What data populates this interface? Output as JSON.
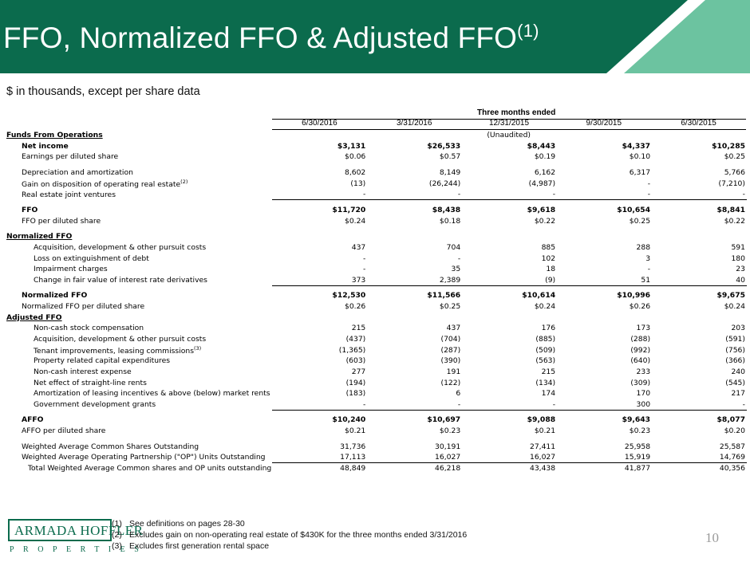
{
  "title": {
    "main": "FFO, Normalized FFO & Adjusted FFO",
    "sup": "(1)"
  },
  "subtitle": "$ in thousands, except per share data",
  "table": {
    "group_header": "Three months ended",
    "columns": [
      "6/30/2016",
      "3/31/2016",
      "12/31/2015",
      "9/30/2015",
      "6/30/2015"
    ],
    "unaudited": "(Unaudited)",
    "sections": {
      "ffo": "Funds From Operations",
      "normalized": "Normalized FFO",
      "adjusted": "Adjusted FFO"
    },
    "rows": [
      {
        "label": "Net income",
        "values": [
          "$3,131",
          "$26,533",
          "$8,443",
          "$4,337",
          "$10,285"
        ]
      },
      {
        "label": "Earnings per diluted share",
        "values": [
          "$0.06",
          "$0.57",
          "$0.19",
          "$0.10",
          "$0.25"
        ]
      },
      {
        "label": "Depreciation and amortization",
        "values": [
          "8,602",
          "8,149",
          "6,162",
          "6,317",
          "5,766"
        ]
      },
      {
        "label": "Gain on disposition of operating real estate",
        "sup": "(2)",
        "values": [
          "(13)",
          "(26,244)",
          "(4,987)",
          "-",
          "(7,210)"
        ]
      },
      {
        "label": "Real estate joint ventures",
        "values": [
          "-",
          "-",
          "-",
          "-",
          "-"
        ]
      },
      {
        "label": "FFO",
        "values": [
          "$11,720",
          "$8,438",
          "$9,618",
          "$10,654",
          "$8,841"
        ]
      },
      {
        "label": "FFO per diluted share",
        "values": [
          "$0.24",
          "$0.18",
          "$0.22",
          "$0.25",
          "$0.22"
        ]
      },
      {
        "label": "Acquisition, development & other pursuit costs",
        "values": [
          "437",
          "704",
          "885",
          "288",
          "591"
        ]
      },
      {
        "label": "Loss on extinguishment of debt",
        "values": [
          "-",
          "-",
          "102",
          "3",
          "180"
        ]
      },
      {
        "label": "Impairment charges",
        "values": [
          "-",
          "35",
          "18",
          "-",
          "23"
        ]
      },
      {
        "label": "Change in fair value of interest rate derivatives",
        "values": [
          "373",
          "2,389",
          "(9)",
          "51",
          "40"
        ]
      },
      {
        "label": "Normalized FFO",
        "values": [
          "$12,530",
          "$11,566",
          "$10,614",
          "$10,996",
          "$9,675"
        ]
      },
      {
        "label": "Normalized FFO per diluted share",
        "values": [
          "$0.26",
          "$0.25",
          "$0.24",
          "$0.26",
          "$0.24"
        ]
      },
      {
        "label": "Non-cash stock compensation",
        "values": [
          "215",
          "437",
          "176",
          "173",
          "203"
        ]
      },
      {
        "label": "Acquisition, development & other pursuit costs",
        "values": [
          "(437)",
          "(704)",
          "(885)",
          "(288)",
          "(591)"
        ]
      },
      {
        "label": "Tenant improvements, leasing commissions",
        "sup": "(3)",
        "values": [
          "(1,365)",
          "(287)",
          "(509)",
          "(992)",
          "(756)"
        ]
      },
      {
        "label": "Property related capital expenditures",
        "values": [
          "(603)",
          "(390)",
          "(563)",
          "(640)",
          "(366)"
        ]
      },
      {
        "label": "Non-cash interest expense",
        "values": [
          "277",
          "191",
          "215",
          "233",
          "240"
        ]
      },
      {
        "label": "Net effect of straight-line rents",
        "values": [
          "(194)",
          "(122)",
          "(134)",
          "(309)",
          "(545)"
        ]
      },
      {
        "label": "Amortization of leasing incentives & above (below) market rents",
        "values": [
          "(183)",
          "6",
          "174",
          "170",
          "217"
        ]
      },
      {
        "label": "Government development grants",
        "values": [
          "-",
          "-",
          "-",
          "300",
          "-"
        ]
      },
      {
        "label": "AFFO",
        "values": [
          "$10,240",
          "$10,697",
          "$9,088",
          "$9,643",
          "$8,077"
        ]
      },
      {
        "label": "AFFO per diluted share",
        "values": [
          "$0.21",
          "$0.23",
          "$0.21",
          "$0.23",
          "$0.20"
        ]
      },
      {
        "label": "Weighted Average Common Shares Outstanding",
        "values": [
          "31,736",
          "30,191",
          "27,411",
          "25,958",
          "25,587"
        ]
      },
      {
        "label": "Weighted Average Operating Partnership (\"OP\") Units Outstanding",
        "values": [
          "17,113",
          "16,027",
          "16,027",
          "15,919",
          "14,769"
        ]
      },
      {
        "label": "Total Weighted Average Common shares and OP units outstanding",
        "values": [
          "48,849",
          "46,218",
          "43,438",
          "41,877",
          "40,356"
        ]
      }
    ]
  },
  "footnotes": [
    {
      "num": "(1)",
      "text": "See definitions on pages 28-30"
    },
    {
      "num": "(2)",
      "text": "Excludes gain on non-operating real estate of $430K for the three months ended 3/31/2016"
    },
    {
      "num": "(3)",
      "text": "Excludes first generation rental space"
    }
  ],
  "logo": {
    "name": "ARMADA HOFFLER",
    "sub": "PROPERTIES"
  },
  "page_number": "10",
  "colors": {
    "dark_green": "#0b6b4d",
    "light_green": "#6cc3a0",
    "text": "#000000"
  }
}
